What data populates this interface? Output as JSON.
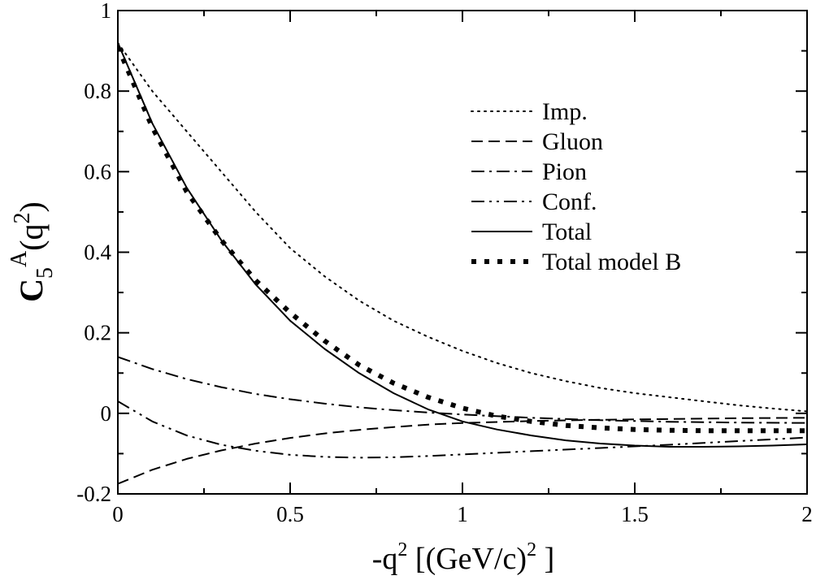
{
  "chart_data": {
    "type": "line",
    "title": "",
    "xlabel": {
      "main": "-q",
      "sup": "2",
      "rest": " [(GeV/c)",
      "sup2": "2",
      "end": " ]"
    },
    "ylabel": {
      "main": "C",
      "sub": "5",
      "sup": "A",
      "rest": "(q",
      "sup2": "2",
      "end": ")"
    },
    "xlim": [
      0,
      2
    ],
    "ylim": [
      -0.2,
      1
    ],
    "xticks": [
      "0",
      "0.5",
      "1",
      "1.5",
      "2"
    ],
    "yticks": [
      "-0.2",
      "0",
      "0.2",
      "0.4",
      "0.6",
      "0.8",
      "1"
    ],
    "legend_position": "top-right",
    "series": [
      {
        "name": "Imp.",
        "style": "dotted",
        "x": [
          0,
          0.1,
          0.2,
          0.3,
          0.4,
          0.5,
          0.6,
          0.7,
          0.8,
          0.9,
          1.0,
          1.1,
          1.2,
          1.3,
          1.4,
          1.5,
          1.6,
          1.7,
          1.8,
          1.9,
          2.0
        ],
        "y": [
          0.92,
          0.8,
          0.7,
          0.6,
          0.5,
          0.41,
          0.34,
          0.28,
          0.23,
          0.19,
          0.155,
          0.125,
          0.1,
          0.08,
          0.063,
          0.05,
          0.04,
          0.03,
          0.02,
          0.012,
          0.005
        ]
      },
      {
        "name": "Gluon",
        "style": "dashed",
        "x": [
          0,
          0.1,
          0.2,
          0.3,
          0.4,
          0.5,
          0.6,
          0.7,
          0.8,
          0.9,
          1.0,
          1.2,
          1.4,
          1.6,
          1.8,
          2.0
        ],
        "y": [
          -0.175,
          -0.14,
          -0.113,
          -0.092,
          -0.075,
          -0.061,
          -0.05,
          -0.041,
          -0.034,
          -0.028,
          -0.024,
          -0.019,
          -0.016,
          -0.014,
          -0.012,
          -0.011
        ]
      },
      {
        "name": "Pion",
        "style": "dashdot",
        "x": [
          0,
          0.1,
          0.2,
          0.3,
          0.4,
          0.5,
          0.6,
          0.7,
          0.8,
          0.9,
          1.0,
          1.2,
          1.4,
          1.6,
          1.8,
          2.0
        ],
        "y": [
          0.14,
          0.11,
          0.085,
          0.065,
          0.048,
          0.035,
          0.024,
          0.015,
          0.008,
          0.002,
          -0.003,
          -0.011,
          -0.017,
          -0.021,
          -0.023,
          -0.024
        ]
      },
      {
        "name": "Conf.",
        "style": "dashdotdot",
        "x": [
          0,
          0.1,
          0.2,
          0.3,
          0.4,
          0.5,
          0.6,
          0.7,
          0.8,
          0.9,
          1.0,
          1.2,
          1.4,
          1.6,
          1.8,
          2.0
        ],
        "y": [
          0.03,
          -0.02,
          -0.055,
          -0.078,
          -0.093,
          -0.103,
          -0.108,
          -0.11,
          -0.109,
          -0.106,
          -0.102,
          -0.094,
          -0.086,
          -0.078,
          -0.069,
          -0.06
        ]
      },
      {
        "name": "Total",
        "style": "solid",
        "x": [
          0,
          0.1,
          0.2,
          0.3,
          0.4,
          0.5,
          0.6,
          0.7,
          0.8,
          0.9,
          1.0,
          1.1,
          1.2,
          1.3,
          1.4,
          1.5,
          1.6,
          1.7,
          1.8,
          1.9,
          2.0
        ],
        "y": [
          0.92,
          0.72,
          0.56,
          0.43,
          0.32,
          0.23,
          0.16,
          0.1,
          0.05,
          0.01,
          -0.02,
          -0.04,
          -0.055,
          -0.067,
          -0.075,
          -0.08,
          -0.083,
          -0.083,
          -0.082,
          -0.08,
          -0.077
        ]
      },
      {
        "name": "Total model B",
        "style": "thick-dotted",
        "x": [
          0,
          0.1,
          0.2,
          0.3,
          0.4,
          0.5,
          0.6,
          0.7,
          0.8,
          0.9,
          1.0,
          1.1,
          1.2,
          1.3,
          1.4,
          1.5,
          1.6,
          1.7,
          1.8,
          1.9,
          2.0
        ],
        "y": [
          0.91,
          0.71,
          0.55,
          0.43,
          0.33,
          0.25,
          0.18,
          0.12,
          0.075,
          0.04,
          0.013,
          -0.007,
          -0.02,
          -0.03,
          -0.036,
          -0.04,
          -0.042,
          -0.043,
          -0.043,
          -0.043,
          -0.043
        ]
      }
    ]
  }
}
